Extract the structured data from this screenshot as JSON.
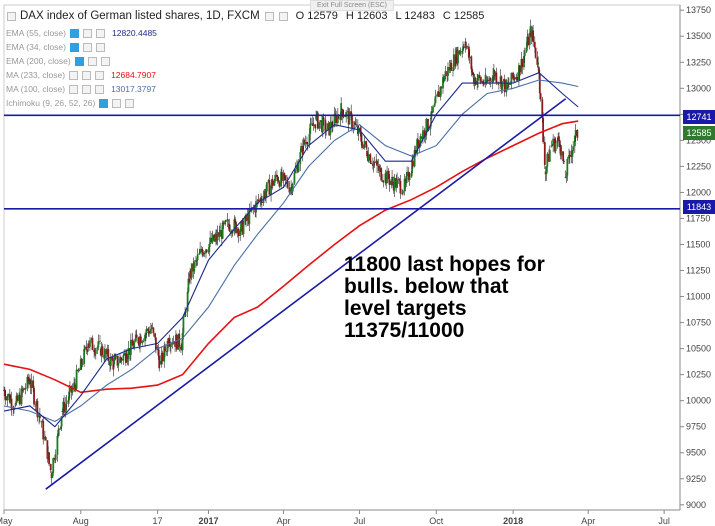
{
  "header": {
    "title": "DAX index of German listed shares, 1D, FXCM",
    "fullscreen_label": "Exit Full Screen (ESC)",
    "open": "O 12579",
    "high": "H 12603",
    "low": "L 12483",
    "close": "C 12585"
  },
  "indicators": [
    {
      "label": "EMA (55, close)",
      "value": "12820.4485",
      "color": "#1c2a8c"
    },
    {
      "label": "EMA (34, close)",
      "value": "",
      "color": "#999999"
    },
    {
      "label": "EMA (200, close)",
      "value": "",
      "color": "#999999"
    },
    {
      "label": "MA (233, close)",
      "value": "12684.7907",
      "color": "#e81010"
    },
    {
      "label": "MA (100, close)",
      "value": "13017.3797",
      "color": "#4a6fa5"
    },
    {
      "label": "Ichimoku (9, 26, 52, 26)",
      "value": "",
      "color": "#999999"
    }
  ],
  "annotation": "11800 last hopes for\nbulls. below that\nlevel targets\n11375/11000",
  "price_tags": [
    {
      "value": "12741",
      "color": "#1a1aa8"
    },
    {
      "value": "12585",
      "color": "#2f7a2f"
    },
    {
      "value": "11843",
      "color": "#1a1aa8"
    }
  ],
  "chart_data": {
    "type": "line",
    "title": "DAX index of German listed shares, 1D, FXCM",
    "y_ticks": [
      "13750",
      "13500",
      "13250",
      "13000",
      "12750",
      "12500",
      "12250",
      "12000",
      "11750",
      "11500",
      "11250",
      "11000",
      "10750",
      "10500",
      "10250",
      "10000",
      "9750",
      "9500",
      "9250",
      "9000"
    ],
    "x_ticks": [
      "May",
      "Aug",
      "17",
      "2017",
      "Apr",
      "Jul",
      "Oct",
      "2018",
      "Apr",
      "Jul"
    ],
    "ylim": [
      8950,
      13800
    ],
    "horizontal_levels": [
      12741,
      11843
    ],
    "trendline": {
      "from": {
        "x": "2016-06-20",
        "y": 9150
      },
      "to": {
        "x": "2018-03-05",
        "y": 12900
      }
    },
    "series": [
      {
        "type": "candlestick",
        "points": [
          [
            "2016-05-01",
            10100
          ],
          [
            "2016-05-15",
            9950
          ],
          [
            "2016-06-01",
            10200
          ],
          [
            "2016-06-15",
            9800
          ],
          [
            "2016-06-27",
            9300
          ],
          [
            "2016-07-10",
            9900
          ],
          [
            "2016-07-25",
            10150
          ],
          [
            "2016-08-10",
            10550
          ],
          [
            "2016-08-25",
            10500
          ],
          [
            "2016-09-10",
            10350
          ],
          [
            "2016-09-25",
            10450
          ],
          [
            "2016-10-10",
            10600
          ],
          [
            "2016-10-25",
            10700
          ],
          [
            "2016-11-05",
            10350
          ],
          [
            "2016-11-15",
            10600
          ],
          [
            "2016-11-30",
            10550
          ],
          [
            "2016-12-10",
            11200
          ],
          [
            "2016-12-25",
            11450
          ],
          [
            "2017-01-10",
            11550
          ],
          [
            "2017-01-25",
            11700
          ],
          [
            "2017-02-10",
            11650
          ],
          [
            "2017-02-25",
            11850
          ],
          [
            "2017-03-10",
            12000
          ],
          [
            "2017-03-25",
            12150
          ],
          [
            "2017-04-10",
            12050
          ],
          [
            "2017-04-25",
            12450
          ],
          [
            "2017-05-10",
            12700
          ],
          [
            "2017-05-25",
            12600
          ],
          [
            "2017-06-10",
            12800
          ],
          [
            "2017-06-25",
            12650
          ],
          [
            "2017-07-10",
            12400
          ],
          [
            "2017-07-25",
            12200
          ],
          [
            "2017-08-10",
            12100
          ],
          [
            "2017-08-25",
            12050
          ],
          [
            "2017-09-10",
            12500
          ],
          [
            "2017-09-25",
            12700
          ],
          [
            "2017-10-10",
            13100
          ],
          [
            "2017-10-25",
            13300
          ],
          [
            "2017-11-05",
            13450
          ],
          [
            "2017-11-15",
            13100
          ],
          [
            "2017-11-30",
            13050
          ],
          [
            "2017-12-10",
            13150
          ],
          [
            "2017-12-25",
            13000
          ],
          [
            "2018-01-10",
            13200
          ],
          [
            "2018-01-23",
            13550
          ],
          [
            "2018-02-01",
            13200
          ],
          [
            "2018-02-09",
            12200
          ],
          [
            "2018-02-16",
            12450
          ],
          [
            "2018-02-26",
            12500
          ],
          [
            "2018-03-05",
            12150
          ],
          [
            "2018-03-12",
            12400
          ],
          [
            "2018-03-20",
            12585
          ]
        ]
      },
      {
        "name": "MA (233, close)",
        "color": "#e81010",
        "points": [
          [
            "2016-05-01",
            10350
          ],
          [
            "2016-06-01",
            10300
          ],
          [
            "2016-07-01",
            10200
          ],
          [
            "2016-08-01",
            10080
          ],
          [
            "2016-09-01",
            10110
          ],
          [
            "2016-10-01",
            10120
          ],
          [
            "2016-11-01",
            10150
          ],
          [
            "2016-12-01",
            10250
          ],
          [
            "2017-01-01",
            10550
          ],
          [
            "2017-02-01",
            10800
          ],
          [
            "2017-03-01",
            10900
          ],
          [
            "2017-04-01",
            11100
          ],
          [
            "2017-05-01",
            11300
          ],
          [
            "2017-06-01",
            11500
          ],
          [
            "2017-07-01",
            11680
          ],
          [
            "2017-08-01",
            11830
          ],
          [
            "2017-09-01",
            11930
          ],
          [
            "2017-10-01",
            12050
          ],
          [
            "2017-11-01",
            12200
          ],
          [
            "2017-12-01",
            12330
          ],
          [
            "2018-01-01",
            12450
          ],
          [
            "2018-02-01",
            12570
          ],
          [
            "2018-03-01",
            12660
          ],
          [
            "2018-03-20",
            12685
          ]
        ]
      },
      {
        "name": "MA (100, close)",
        "color": "#4a6fa5",
        "points": [
          [
            "2016-05-01",
            9950
          ],
          [
            "2016-06-01",
            9900
          ],
          [
            "2016-07-01",
            9800
          ],
          [
            "2016-08-01",
            9950
          ],
          [
            "2016-09-01",
            10150
          ],
          [
            "2016-10-01",
            10300
          ],
          [
            "2016-11-01",
            10500
          ],
          [
            "2016-12-01",
            10600
          ],
          [
            "2017-01-01",
            10900
          ],
          [
            "2017-02-01",
            11300
          ],
          [
            "2017-03-01",
            11600
          ],
          [
            "2017-04-01",
            11900
          ],
          [
            "2017-05-01",
            12250
          ],
          [
            "2017-06-01",
            12500
          ],
          [
            "2017-07-01",
            12650
          ],
          [
            "2017-08-01",
            12450
          ],
          [
            "2017-09-01",
            12350
          ],
          [
            "2017-10-01",
            12450
          ],
          [
            "2017-11-01",
            12750
          ],
          [
            "2017-12-01",
            12950
          ],
          [
            "2018-01-01",
            13000
          ],
          [
            "2018-02-01",
            13080
          ],
          [
            "2018-03-01",
            13050
          ],
          [
            "2018-03-20",
            13017
          ]
        ]
      },
      {
        "name": "EMA (55, close)",
        "color": "#1c2a8c",
        "points": [
          [
            "2016-05-01",
            9900
          ],
          [
            "2016-06-01",
            9950
          ],
          [
            "2016-07-01",
            9750
          ],
          [
            "2016-08-01",
            10050
          ],
          [
            "2016-09-01",
            10400
          ],
          [
            "2016-10-01",
            10500
          ],
          [
            "2016-11-01",
            10550
          ],
          [
            "2016-12-01",
            10800
          ],
          [
            "2017-01-01",
            11350
          ],
          [
            "2017-02-01",
            11650
          ],
          [
            "2017-03-01",
            11900
          ],
          [
            "2017-04-01",
            12050
          ],
          [
            "2017-05-01",
            12450
          ],
          [
            "2017-06-01",
            12650
          ],
          [
            "2017-07-01",
            12600
          ],
          [
            "2017-08-01",
            12300
          ],
          [
            "2017-09-01",
            12300
          ],
          [
            "2017-10-01",
            12750
          ],
          [
            "2017-11-01",
            13050
          ],
          [
            "2017-12-01",
            13050
          ],
          [
            "2018-01-01",
            13050
          ],
          [
            "2018-02-01",
            13150
          ],
          [
            "2018-03-01",
            12950
          ],
          [
            "2018-03-20",
            12820
          ]
        ]
      }
    ]
  }
}
